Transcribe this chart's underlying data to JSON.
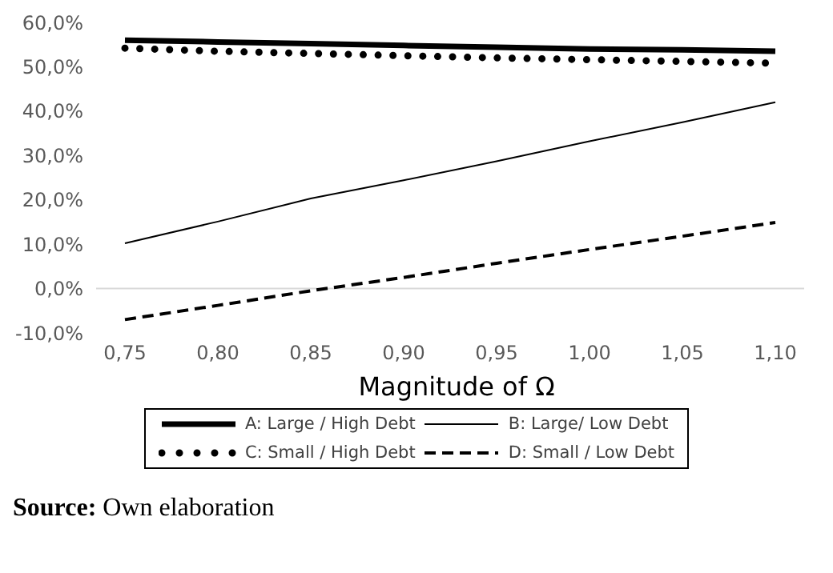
{
  "chart_data": {
    "type": "line",
    "xlabel": "Magnitude of Ω",
    "categories": [
      "0,75",
      "0,80",
      "0,85",
      "0,90",
      "0,95",
      "1,00",
      "1,05",
      "1,10"
    ],
    "series": [
      {
        "name": "A: Large / High Debt",
        "color": "#000000",
        "line_style": "solid",
        "values": [
          56.0,
          55.6,
          55.2,
          54.8,
          54.4,
          54.0,
          53.8,
          53.5
        ]
      },
      {
        "name": "B: Large/ Low Debt",
        "color": "#000000",
        "line_style": "solid",
        "values": [
          10.2,
          15.1,
          20.3,
          24.4,
          28.7,
          33.2,
          37.5,
          42.0
        ]
      },
      {
        "name": "C: Small / High Debt",
        "color": "#000000",
        "line_style": "dotted",
        "values": [
          54.2,
          53.5,
          53.0,
          52.5,
          52.0,
          51.6,
          51.2,
          50.8
        ]
      },
      {
        "name": "D: Small / Low Debt",
        "color": "#000000",
        "line_style": "dashed",
        "values": [
          -7.0,
          -3.8,
          -0.5,
          2.5,
          5.7,
          8.8,
          11.8,
          14.9
        ]
      }
    ],
    "ylim": [
      -10,
      60
    ],
    "yticks": [
      {
        "value": -10,
        "label": "-10,0%"
      },
      {
        "value": 0,
        "label": "0,0%"
      },
      {
        "value": 10,
        "label": "10,0%"
      },
      {
        "value": 20,
        "label": "20,0%"
      },
      {
        "value": 30,
        "label": "30,0%"
      },
      {
        "value": 40,
        "label": "40,0%"
      },
      {
        "value": 50,
        "label": "50,0%"
      },
      {
        "value": 60,
        "label": "60,0%"
      }
    ],
    "ref_lines": [
      {
        "axis": "y",
        "value": 0,
        "color": "#d9d9d9"
      }
    ],
    "grid": false,
    "legend": "bottom",
    "marker": "none",
    "annotations": [
      "Source: Own elaboration"
    ]
  }
}
